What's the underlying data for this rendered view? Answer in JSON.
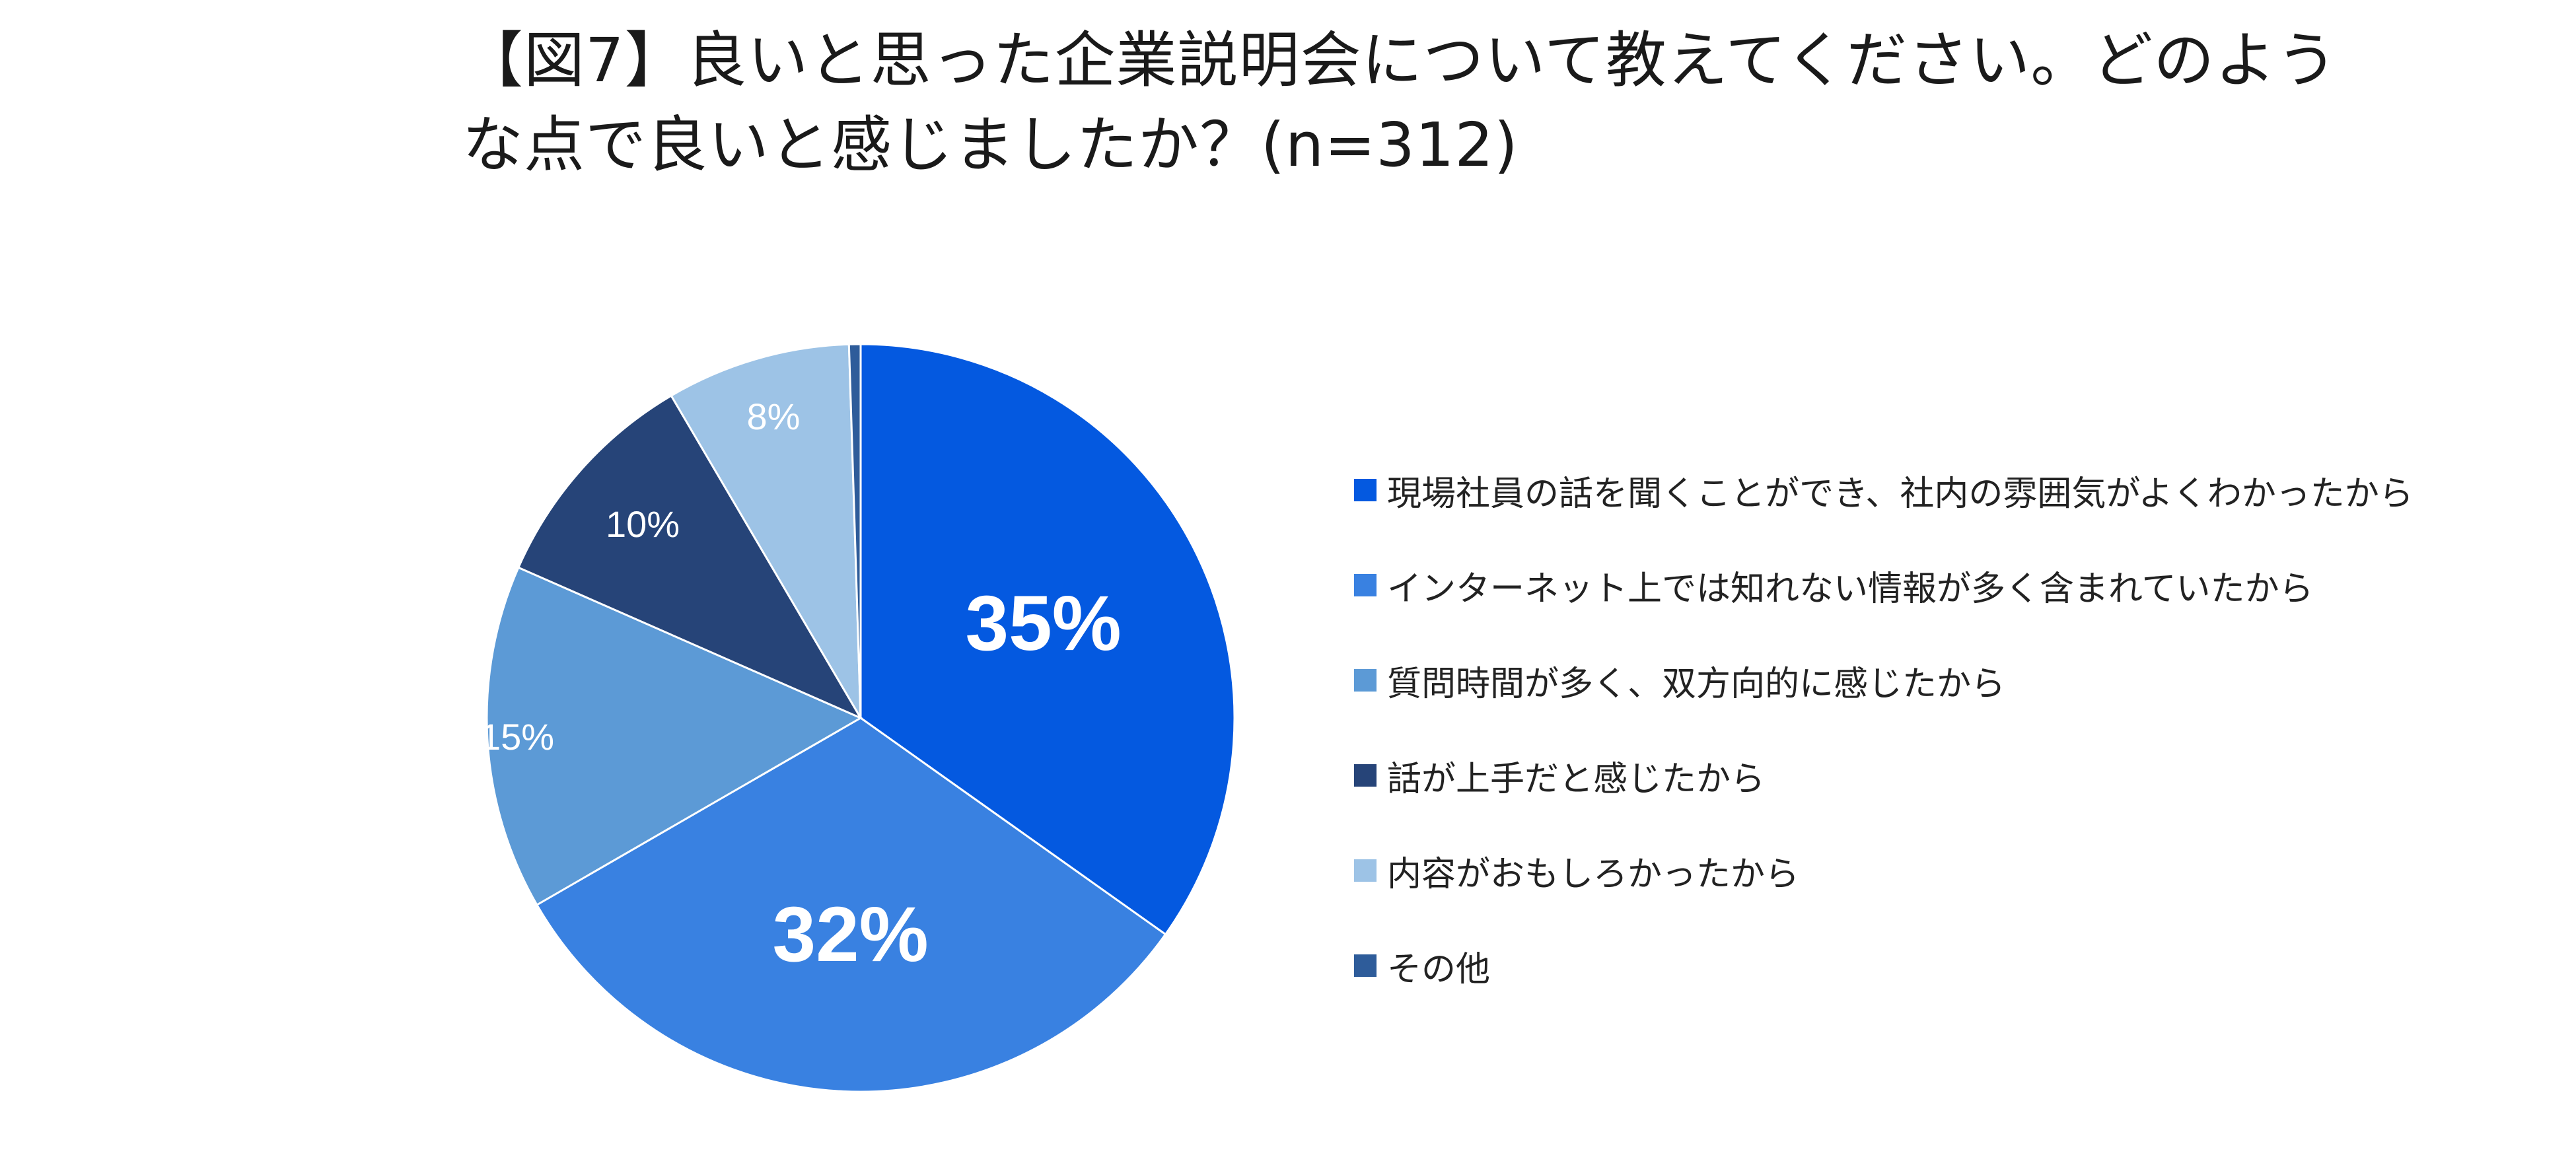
{
  "chart_data": {
    "type": "pie",
    "title": "【図7】良いと思った企業説明会について教えてください。どのような点で良いと感じましたか？(n=312)",
    "labels": [
      "現場社員の話を聞くことができ、社内の雰囲気がよくわかったから",
      "インターネット上では知れない情報が多く含まれていたから",
      "質問時間が多く、双方向的に感じたから",
      "話が上手だと感じたから",
      "内容がおもしろかったから",
      "その他"
    ],
    "values": [
      35,
      32,
      15,
      10,
      8,
      0.5
    ],
    "data_labels": [
      "35%",
      "32%",
      "15%",
      "10%",
      "8%",
      ""
    ],
    "colors": [
      "#0459E0",
      "#3981E1",
      "#5C9AD6",
      "#264478",
      "#9DC3E6",
      "#2E5C9A"
    ],
    "legend_position": "right"
  }
}
